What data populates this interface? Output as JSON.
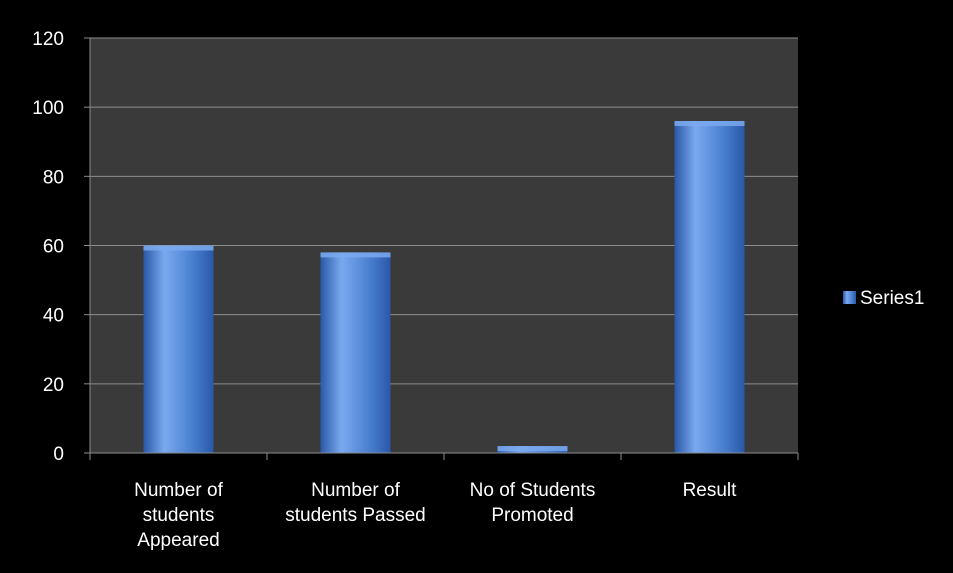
{
  "chart_data": {
    "type": "bar",
    "categories": [
      [
        "Number of",
        "students",
        "Appeared"
      ],
      [
        "Number of",
        "students Passed"
      ],
      [
        "No of Students",
        "Promoted"
      ],
      [
        "Result"
      ]
    ],
    "series": [
      {
        "name": "Series1",
        "values": [
          60,
          58,
          2,
          96
        ]
      }
    ],
    "yticks": [
      0,
      20,
      40,
      60,
      80,
      100,
      120
    ],
    "ylim": [
      0,
      120
    ],
    "grid": true,
    "legend": "right",
    "colors": {
      "background": "#000000",
      "plot_area": "#3a3a3a",
      "gridline": "#8c8c8c",
      "bar": "#4a7fd0",
      "bar_light": "#7aa9ee",
      "bar_dark": "#2a58a8",
      "text": "#ffffff"
    }
  }
}
